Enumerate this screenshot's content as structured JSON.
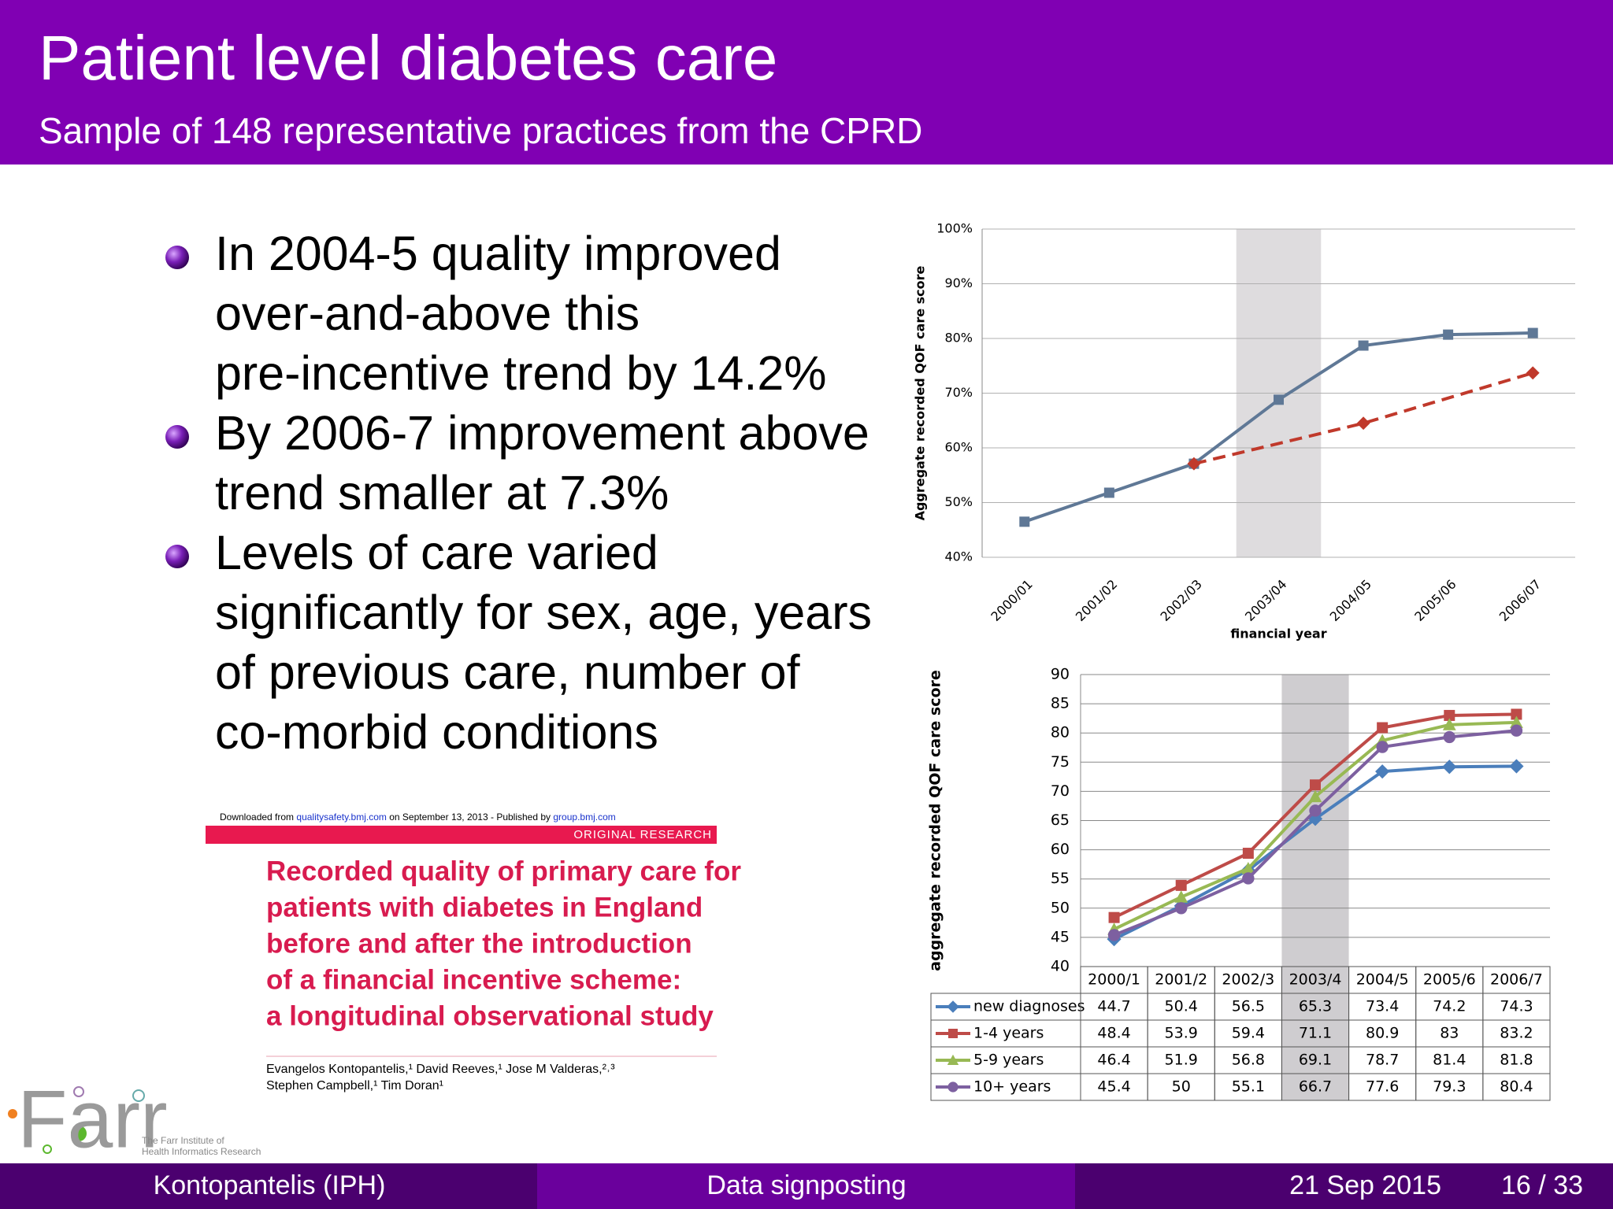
{
  "header": {
    "title": "Patient level diabetes care",
    "subtitle": "Sample of 148 representative practices from the CPRD"
  },
  "bullets": [
    [
      "In 2004-5 quality improved",
      "over-and-above this",
      "pre-incentive trend by 14.2%"
    ],
    [
      "By 2006-7 improvement above",
      "trend smaller at 7.3%"
    ],
    [
      "Levels of care varied",
      "significantly for sex, age, years",
      "of previous care, number of",
      "co-morbid conditions"
    ]
  ],
  "paper": {
    "download_note": [
      "Downloaded from ",
      "qualitysafety.bmj.com",
      " on September 13, 2013 - Published by ",
      "group.bmj.com"
    ],
    "section": "ORIGINAL RESEARCH",
    "title_lines": [
      "Recorded quality of primary care for",
      "patients with diabetes in England",
      "before and after the introduction",
      "of a financial incentive scheme:",
      "a longitudinal observational study"
    ],
    "author_lines": [
      "Evangelos Kontopantelis,¹ David Reeves,¹ Jose M Valderas,²˒³",
      "Stephen Campbell,¹ Tim Doran¹"
    ]
  },
  "logo": {
    "mark": "Farr",
    "line1": "The Farr Institute of",
    "line2": "Health Informatics Research"
  },
  "footer": {
    "author": "Kontopantelis  (IPH)",
    "talk": "Data signposting",
    "date": "21 Sep 2015",
    "page": "16 / 33"
  },
  "chart_data": [
    {
      "type": "line",
      "x_label": "financial year",
      "y_label": "Aggregate recorded QOF care score",
      "categories": [
        "2000/01",
        "2001/02",
        "2002/03",
        "2003/04",
        "2004/05",
        "2005/06",
        "2006/07"
      ],
      "highlight": "2003/04",
      "grid": true,
      "series": [
        {
          "color": "#5f7896",
          "marker": "square",
          "style": "solid",
          "values": [
            46.5,
            51.8,
            57.1,
            68.8,
            78.7,
            80.7,
            81.0
          ]
        },
        {
          "color": "#c0392b",
          "marker": "diamond",
          "style": "dashed",
          "values": [
            null,
            null,
            57.1,
            null,
            64.5,
            null,
            73.7
          ]
        }
      ],
      "ylim": [
        40,
        100
      ],
      "yticks": [
        {
          "value": 40,
          "label": "40%"
        },
        {
          "value": 50,
          "label": "50%"
        },
        {
          "value": 60,
          "label": "60%"
        },
        {
          "value": 70,
          "label": "70%"
        },
        {
          "value": 80,
          "label": "80%"
        },
        {
          "value": 90,
          "label": "90%"
        },
        {
          "value": 100,
          "label": "100%"
        }
      ]
    },
    {
      "type": "line",
      "y_label": "aggregate recorded QOF care score",
      "data_table": true,
      "categories": [
        "2000/1",
        "2001/2",
        "2002/3",
        "2003/4",
        "2004/5",
        "2005/6",
        "2006/7"
      ],
      "highlight": "2003/4",
      "grid": true,
      "series": [
        {
          "name": "new diagnoses",
          "color": "#4a7ebb",
          "marker": "diamond",
          "style": "solid",
          "values": [
            44.7,
            50.4,
            56.5,
            65.3,
            73.4,
            74.2,
            74.3
          ]
        },
        {
          "name": "1-4 years",
          "color": "#be4b48",
          "marker": "square",
          "style": "solid",
          "values": [
            48.4,
            53.9,
            59.4,
            71.1,
            80.9,
            83,
            83.2
          ]
        },
        {
          "name": "5-9 years",
          "color": "#98b954",
          "marker": "triangle",
          "style": "solid",
          "values": [
            46.4,
            51.9,
            56.8,
            69.1,
            78.7,
            81.4,
            81.8
          ]
        },
        {
          "name": "10+ years",
          "color": "#7d60a0",
          "marker": "circle",
          "style": "solid",
          "values": [
            45.4,
            50,
            55.1,
            66.7,
            77.6,
            79.3,
            80.4
          ]
        }
      ],
      "ylim": [
        40,
        90
      ],
      "yticks": [
        40,
        45,
        50,
        55,
        60,
        65,
        70,
        75,
        80,
        85,
        90
      ]
    }
  ]
}
